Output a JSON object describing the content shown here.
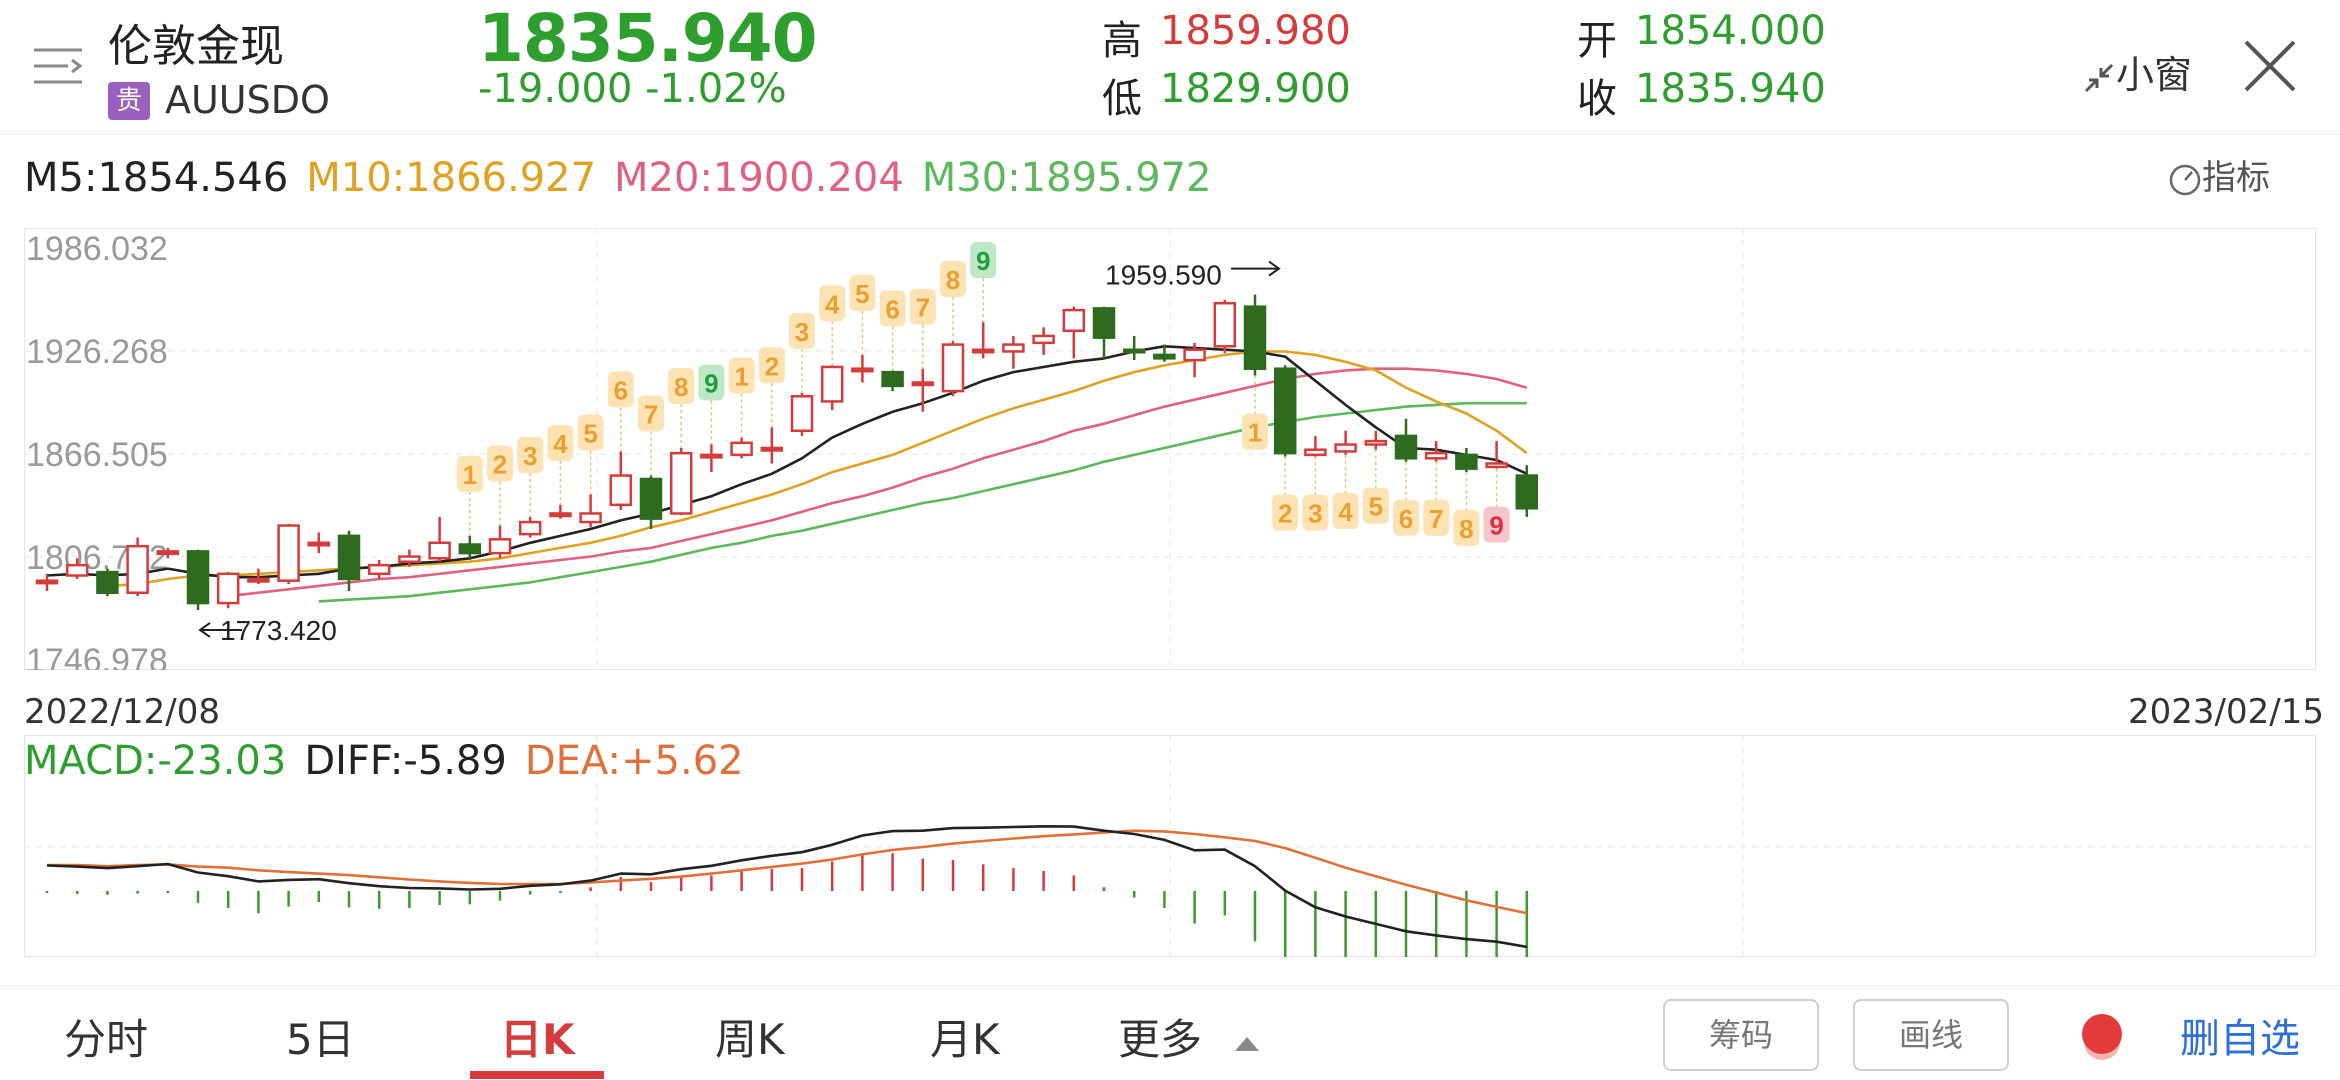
{
  "header": {
    "title": "伦敦金现",
    "badge": "贵",
    "symbol": "AUUSDO",
    "price": "1835.940",
    "change": "-19.000  -1.02%",
    "high_label": "高",
    "high_value": "1859.980",
    "low_label": "低",
    "low_value": "1829.900",
    "open_label": "开",
    "open_value": "1854.000",
    "close_label": "收",
    "close_value": "1835.940",
    "small_window": "小窗"
  },
  "ma": {
    "m5": "M5:1854.546",
    "m10": "M10:1866.927",
    "m20": "M20:1900.204",
    "m30": "M30:1895.972",
    "indicator_label": "指标"
  },
  "colors": {
    "up": "#d63b3b",
    "down": "#2e6b1e",
    "m5": "#222222",
    "m10": "#e0a020",
    "m20": "#e06080",
    "m30": "#5cb85c",
    "diff": "#222222",
    "dea": "#e07038",
    "count_up": "#f6a92a",
    "count_nine_green": "#1e9e3e",
    "count_nine_red": "#e03040"
  },
  "chart_data": {
    "type": "candlestick",
    "y_ticks": [
      "1986.032",
      "1926.268",
      "1866.505",
      "1806.742",
      "1746.978"
    ],
    "ylim": [
      1746.978,
      1986.032
    ],
    "x_start_label": "2022/12/08",
    "x_end_label": "2023/02/15",
    "max_annotation": "1959.590",
    "min_annotation": "1773.420",
    "candles": [
      [
        1792,
        1793,
        1797,
        1787
      ],
      [
        1796,
        1802,
        1806,
        1794
      ],
      [
        1798,
        1786,
        1800,
        1784
      ],
      [
        1786,
        1813,
        1818,
        1784
      ],
      [
        1810,
        1810,
        1812,
        1806
      ],
      [
        1810,
        1780,
        1811,
        1776
      ],
      [
        1780,
        1797,
        1798,
        1777
      ],
      [
        1794,
        1794,
        1800,
        1791
      ],
      [
        1793,
        1825,
        1826,
        1791
      ],
      [
        1815,
        1815,
        1821,
        1809
      ],
      [
        1819,
        1794,
        1822,
        1787
      ],
      [
        1797,
        1802,
        1805,
        1794
      ],
      [
        1804,
        1807,
        1811,
        1801
      ],
      [
        1806,
        1815,
        1830,
        1804
      ],
      [
        1814,
        1809,
        1819,
        1805
      ],
      [
        1809,
        1817,
        1825,
        1806
      ],
      [
        1820,
        1827,
        1830,
        1818
      ],
      [
        1832,
        1832,
        1837,
        1829
      ],
      [
        1827,
        1832,
        1843,
        1824
      ],
      [
        1837,
        1854,
        1868,
        1834
      ],
      [
        1852,
        1829,
        1854,
        1823
      ],
      [
        1832,
        1867,
        1870,
        1831
      ],
      [
        1866,
        1866,
        1872,
        1856
      ],
      [
        1866,
        1873,
        1876,
        1864
      ],
      [
        1870,
        1870,
        1882,
        1861
      ],
      [
        1880,
        1900,
        1902,
        1877
      ],
      [
        1897,
        1917,
        1918,
        1892
      ],
      [
        1915,
        1916,
        1924,
        1908
      ],
      [
        1914,
        1906,
        1915,
        1903
      ],
      [
        1908,
        1908,
        1916,
        1891
      ],
      [
        1903,
        1930,
        1932,
        1900
      ],
      [
        1927,
        1927,
        1943,
        1922
      ],
      [
        1926,
        1930,
        1935,
        1916
      ],
      [
        1931,
        1935,
        1940,
        1924
      ],
      [
        1938,
        1950,
        1952,
        1922
      ],
      [
        1951,
        1934,
        1952,
        1922
      ],
      [
        1927,
        1926,
        1935,
        1921
      ],
      [
        1924,
        1922,
        1930,
        1920
      ],
      [
        1921,
        1927,
        1931,
        1911
      ],
      [
        1929,
        1954,
        1956,
        1925
      ],
      [
        1952,
        1916,
        1959,
        1912
      ],
      [
        1916,
        1867,
        1918,
        1865
      ],
      [
        1866,
        1869,
        1877,
        1865
      ],
      [
        1868,
        1872,
        1880,
        1866
      ],
      [
        1872,
        1874,
        1880,
        1869
      ],
      [
        1877,
        1864,
        1887,
        1862
      ],
      [
        1864,
        1867,
        1874,
        1862
      ],
      [
        1866,
        1858,
        1870,
        1856
      ],
      [
        1859,
        1861,
        1874,
        1858
      ],
      [
        1854,
        1835,
        1860,
        1830
      ]
    ],
    "ma5": [
      1796,
      1797,
      1796,
      1797,
      1800,
      1797,
      1795,
      1795,
      1796,
      1797,
      1800,
      1801,
      1803,
      1804,
      1806,
      1810,
      1815,
      1819,
      1823,
      1828,
      1832,
      1837,
      1842,
      1849,
      1855,
      1864,
      1876,
      1884,
      1891,
      1896,
      1902,
      1909,
      1914,
      1917,
      1920,
      1922,
      1926,
      1929,
      1928,
      1927,
      1926,
      1923,
      1909,
      1895,
      1882,
      1870,
      1869,
      1866,
      1863,
      1855
    ],
    "ma10": [
      null,
      null,
      1790,
      1791,
      1794,
      1796,
      1796,
      1797,
      1798,
      1799,
      1800,
      1801,
      1802,
      1803,
      1804,
      1806,
      1809,
      1812,
      1815,
      1819,
      1824,
      1828,
      1833,
      1838,
      1843,
      1849,
      1856,
      1861,
      1866,
      1873,
      1880,
      1887,
      1893,
      1898,
      1903,
      1909,
      1914,
      1918,
      1921,
      1924,
      1926,
      1926,
      1924,
      1920,
      1915,
      1905,
      1897,
      1890,
      1880,
      1867
    ],
    "ma20": [
      null,
      null,
      null,
      null,
      null,
      null,
      1784,
      1786,
      1788,
      1790,
      1792,
      1794,
      1795,
      1797,
      1799,
      1801,
      1803,
      1805,
      1807,
      1810,
      1812,
      1816,
      1820,
      1824,
      1828,
      1833,
      1838,
      1842,
      1847,
      1853,
      1858,
      1864,
      1869,
      1874,
      1880,
      1884,
      1889,
      1894,
      1898,
      1902,
      1906,
      1910,
      1913,
      1915,
      1916,
      1916,
      1915,
      1913,
      1910,
      1905
    ],
    "ma30": [
      null,
      null,
      null,
      null,
      null,
      null,
      null,
      null,
      null,
      1781,
      1782,
      1783,
      1784,
      1786,
      1788,
      1790,
      1792,
      1795,
      1798,
      1801,
      1804,
      1808,
      1812,
      1815,
      1819,
      1822,
      1826,
      1830,
      1834,
      1838,
      1841,
      1845,
      1849,
      1853,
      1857,
      1862,
      1866,
      1870,
      1874,
      1878,
      1882,
      1885,
      1888,
      1890,
      1892,
      1894,
      1895,
      1896,
      1896,
      1896
    ],
    "count_labels": [
      {
        "i": 14,
        "text": "1",
        "pos": "above",
        "color": "count_up"
      },
      {
        "i": 15,
        "text": "2",
        "pos": "above",
        "color": "count_up"
      },
      {
        "i": 16,
        "text": "3",
        "pos": "above",
        "color": "count_up"
      },
      {
        "i": 17,
        "text": "4",
        "pos": "above",
        "color": "count_up"
      },
      {
        "i": 18,
        "text": "5",
        "pos": "above",
        "color": "count_up"
      },
      {
        "i": 19,
        "text": "6",
        "pos": "above",
        "color": "count_up"
      },
      {
        "i": 20,
        "text": "7",
        "pos": "above",
        "color": "count_up"
      },
      {
        "i": 21,
        "text": "8",
        "pos": "above",
        "color": "count_up"
      },
      {
        "i": 22,
        "text": "9",
        "pos": "above",
        "color": "count_nine_green"
      },
      {
        "i": 23,
        "text": "1",
        "pos": "above",
        "color": "count_up"
      },
      {
        "i": 24,
        "text": "2",
        "pos": "above",
        "color": "count_up"
      },
      {
        "i": 25,
        "text": "3",
        "pos": "above",
        "color": "count_up"
      },
      {
        "i": 26,
        "text": "4",
        "pos": "above",
        "color": "count_up"
      },
      {
        "i": 27,
        "text": "5",
        "pos": "above",
        "color": "count_up"
      },
      {
        "i": 28,
        "text": "6",
        "pos": "above",
        "color": "count_up"
      },
      {
        "i": 29,
        "text": "7",
        "pos": "above",
        "color": "count_up"
      },
      {
        "i": 30,
        "text": "8",
        "pos": "above",
        "color": "count_up"
      },
      {
        "i": 31,
        "text": "9",
        "pos": "above",
        "color": "count_nine_green"
      },
      {
        "i": 40,
        "text": "1",
        "pos": "below",
        "color": "count_up"
      },
      {
        "i": 41,
        "text": "2",
        "pos": "below",
        "color": "count_up"
      },
      {
        "i": 42,
        "text": "3",
        "pos": "below",
        "color": "count_up"
      },
      {
        "i": 43,
        "text": "4",
        "pos": "below",
        "color": "count_up"
      },
      {
        "i": 44,
        "text": "5",
        "pos": "below",
        "color": "count_up"
      },
      {
        "i": 45,
        "text": "6",
        "pos": "below",
        "color": "count_up"
      },
      {
        "i": 46,
        "text": "7",
        "pos": "below",
        "color": "count_up"
      },
      {
        "i": 47,
        "text": "8",
        "pos": "below",
        "color": "count_up"
      },
      {
        "i": 48,
        "text": "9",
        "pos": "below",
        "color": "count_nine_red"
      }
    ],
    "macd": {
      "label": "MACD:-23.03",
      "diff_label": "DIFF:-5.89",
      "dea_label": "DEA:+5.62",
      "diff": [
        13.8,
        13.2,
        12.4,
        13.4,
        14.6,
        10.0,
        8.0,
        5.2,
        6.0,
        6.4,
        4.2,
        2.6,
        1.6,
        1.4,
        0.8,
        1.2,
        2.8,
        3.6,
        5.6,
        9.4,
        9.0,
        11.8,
        13.6,
        16.6,
        19.0,
        21.0,
        25.0,
        30.0,
        32.4,
        32.6,
        34.0,
        34.2,
        34.6,
        35.0,
        34.8,
        32.6,
        30.8,
        27.6,
        22.0,
        22.4,
        13.4,
        0.2,
        -8.8,
        -13.8,
        -17.8,
        -21.8,
        -24.0,
        -26.0,
        -27.4,
        -30.2
      ],
      "dea": [
        14.0,
        14.0,
        13.4,
        14.0,
        14.4,
        13.2,
        12.6,
        11.2,
        10.2,
        9.4,
        8.6,
        7.4,
        6.2,
        5.2,
        4.4,
        3.8,
        3.8,
        3.8,
        4.6,
        5.6,
        6.6,
        7.8,
        9.4,
        11.2,
        13.0,
        14.8,
        17.0,
        19.8,
        22.2,
        23.8,
        25.6,
        27.0,
        28.4,
        29.6,
        30.6,
        31.6,
        32.6,
        32.2,
        30.8,
        29.0,
        27.0,
        23.2,
        18.0,
        12.6,
        8.0,
        3.4,
        -0.8,
        -5.0,
        -8.6,
        -12.0
      ],
      "hist": [
        -0.4,
        -1.6,
        -2.0,
        -1.4,
        0.4,
        -6.4,
        -9.2,
        -12.0,
        -8.4,
        -6.0,
        -8.8,
        -9.6,
        -9.2,
        -7.6,
        -7.2,
        -5.2,
        -2.0,
        -0.4,
        2.0,
        7.6,
        4.8,
        8.0,
        8.4,
        10.8,
        12.0,
        12.4,
        16.0,
        20.4,
        20.4,
        17.6,
        16.8,
        14.4,
        12.4,
        10.8,
        8.4,
        2.0,
        -3.6,
        -9.2,
        -17.6,
        -13.2,
        -27.2,
        -46.0,
        -53.6,
        -52.8,
        -51.6,
        -50.4,
        -46.4,
        -42.0,
        -37.6,
        -36.4
      ]
    }
  },
  "tabs": {
    "intraday": "分时",
    "five_day": "5日",
    "day_k": "日K",
    "week_k": "周K",
    "month_k": "月K",
    "more": "更多",
    "chips": "筹码",
    "draw": "画线",
    "remove_watchlist": "删自选"
  }
}
